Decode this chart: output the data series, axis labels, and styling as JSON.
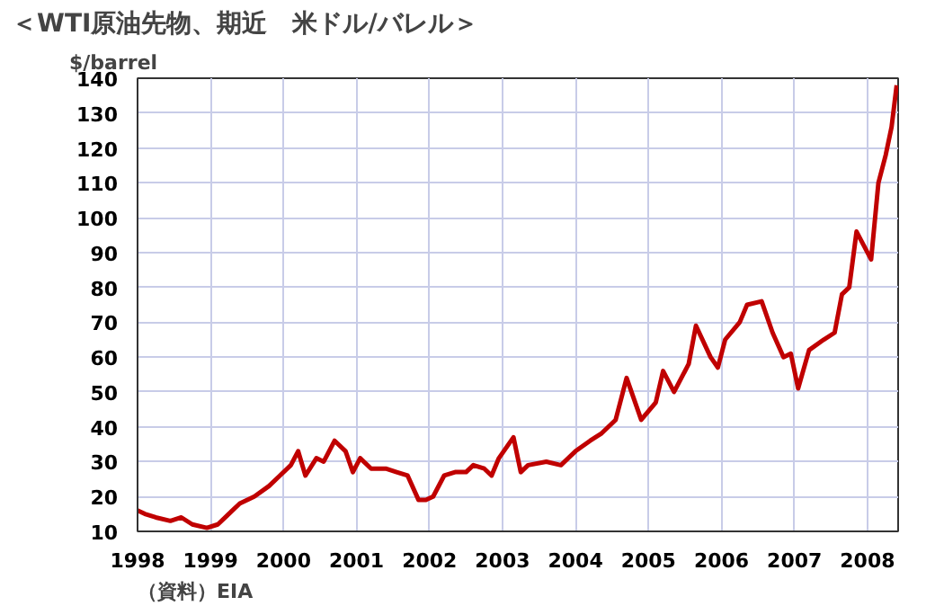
{
  "chart_data": {
    "type": "line",
    "title": "＜WTI原油先物、期近　米ドル/バレル＞",
    "ylabel": "$/barrel",
    "annotations": [
      "（資料）EIA"
    ],
    "x": [
      1998.0,
      1998.1,
      1998.25,
      1998.45,
      1998.6,
      1998.75,
      1998.95,
      1999.1,
      1999.25,
      1999.4,
      1999.6,
      1999.8,
      1999.95,
      2000.1,
      2000.2,
      2000.3,
      2000.45,
      2000.55,
      2000.7,
      2000.85,
      2000.95,
      2001.05,
      2001.2,
      2001.4,
      2001.55,
      2001.7,
      2001.85,
      2001.95,
      2002.05,
      2002.2,
      2002.35,
      2002.5,
      2002.6,
      2002.75,
      2002.85,
      2002.95,
      2003.15,
      2003.25,
      2003.35,
      2003.6,
      2003.8,
      2004.0,
      2004.2,
      2004.35,
      2004.55,
      2004.7,
      2004.9,
      2005.1,
      2005.2,
      2005.35,
      2005.55,
      2005.65,
      2005.85,
      2005.95,
      2006.05,
      2006.25,
      2006.35,
      2006.55,
      2006.7,
      2006.85,
      2006.95,
      2007.05,
      2007.2,
      2007.4,
      2007.55,
      2007.65,
      2007.75,
      2007.85,
      2007.95,
      2008.05,
      2008.15,
      2008.25,
      2008.33,
      2008.4
    ],
    "series": [
      {
        "color": "#c00000",
        "values": [
          16,
          15,
          14,
          13,
          14,
          12,
          11,
          12,
          15,
          18,
          20,
          23,
          26,
          29,
          33,
          26,
          31,
          30,
          36,
          33,
          27,
          31,
          28,
          28,
          27,
          26,
          19,
          19,
          20,
          26,
          27,
          27,
          29,
          28,
          26,
          31,
          37,
          27,
          29,
          30,
          29,
          33,
          36,
          38,
          42,
          54,
          42,
          47,
          56,
          50,
          58,
          69,
          60,
          57,
          65,
          70,
          75,
          76,
          67,
          60,
          61,
          51,
          62,
          65,
          67,
          78,
          80,
          96,
          92,
          88,
          110,
          118,
          126,
          138
        ]
      }
    ],
    "xlim": [
      1998,
      2008.42
    ],
    "xticks": [
      1998,
      1999,
      2000,
      2001,
      2002,
      2003,
      2004,
      2005,
      2006,
      2007,
      2008
    ],
    "ylim": [
      10,
      140
    ],
    "yticks": [
      10,
      20,
      30,
      40,
      50,
      60,
      70,
      80,
      90,
      100,
      110,
      120,
      130,
      140
    ],
    "grid": true,
    "marker": "none",
    "line_style": "solid"
  }
}
